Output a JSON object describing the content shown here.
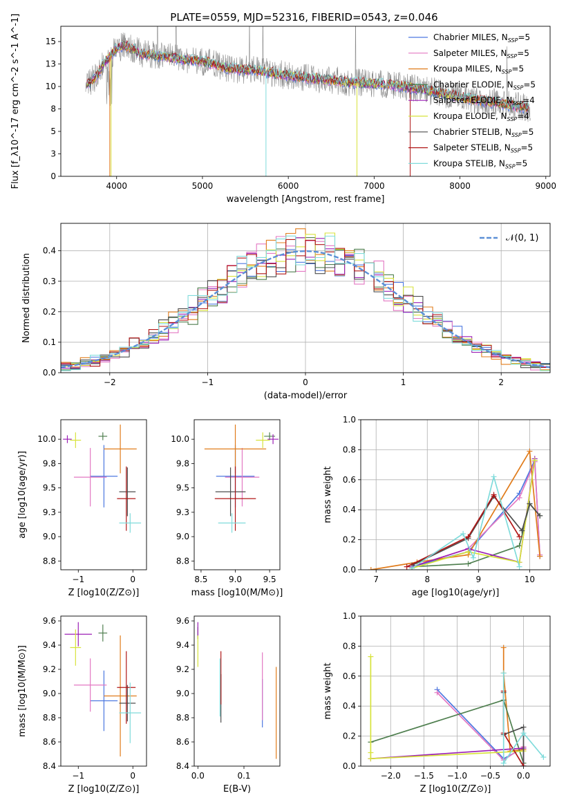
{
  "figure": {
    "title": "PLATE=0559, MJD=52316, FIBERID=0543, z=0.046"
  },
  "models": [
    {
      "name": "Chabrier MILES",
      "nssp": "5",
      "color": "#4c78e0"
    },
    {
      "name": "Salpeter MILES",
      "nssp": "5",
      "color": "#e377c2"
    },
    {
      "name": "Kroupa MILES",
      "nssp": "5",
      "color": "#e07b1a"
    },
    {
      "name": "Chabrier ELODIE",
      "nssp": "5",
      "color": "#4f7f4f"
    },
    {
      "name": "Salpeter ELODIE",
      "nssp": "4",
      "color": "#9b1fb5"
    },
    {
      "name": "Kroupa ELODIE",
      "nssp": "4",
      "color": "#d7e23a"
    },
    {
      "name": "Chabrier STELIB",
      "nssp": "5",
      "color": "#4d4d4d"
    },
    {
      "name": "Salpeter STELIB",
      "nssp": "5",
      "color": "#b01616"
    },
    {
      "name": "Kroupa STELIB",
      "nssp": "5",
      "color": "#7fdbdb"
    }
  ],
  "chart_data": [
    {
      "id": "spectrum",
      "type": "line",
      "xlabel": "wavelength [Angstrom, rest frame]",
      "ylabel": "Flux [f_λ10^-17 erg cm^-2 s^-1 A^-1]",
      "xlim": [
        3350,
        9050
      ],
      "ylim": [
        0,
        16.7
      ],
      "xticks": [
        4000,
        5000,
        6000,
        7000,
        8000,
        9000
      ],
      "yticks": [
        0.0,
        2.5,
        5.0,
        7.5,
        10.0,
        12.5,
        15.0
      ],
      "data_color": "#888888",
      "continuum": [
        [
          3650,
          10.2
        ],
        [
          3750,
          11.0
        ],
        [
          3850,
          12.5
        ],
        [
          4000,
          14.2
        ],
        [
          4100,
          14.6
        ],
        [
          4300,
          13.6
        ],
        [
          4500,
          13.4
        ],
        [
          4800,
          13.0
        ],
        [
          5000,
          12.8
        ],
        [
          5300,
          12.0
        ],
        [
          5600,
          11.8
        ],
        [
          6000,
          11.2
        ],
        [
          6400,
          10.8
        ],
        [
          6800,
          10.4
        ],
        [
          7200,
          10.2
        ],
        [
          7600,
          9.6
        ],
        [
          8000,
          8.8
        ],
        [
          8400,
          8.2
        ],
        [
          8800,
          7.6
        ]
      ],
      "legend_position": "upper right"
    },
    {
      "id": "residuals",
      "type": "line",
      "xlabel": "(data-model)/error",
      "ylabel": "Normed distribution",
      "xlim": [
        -2.5,
        2.5
      ],
      "ylim": [
        0,
        0.49
      ],
      "xticks": [
        -2,
        -1,
        0,
        1,
        2
      ],
      "yticks": [
        0.0,
        0.1,
        0.2,
        0.3,
        0.4
      ],
      "grid": true,
      "normal_label": "𝒩(0, 1)",
      "normal_color": "#5b8fd6",
      "legend_position": "upper right"
    },
    {
      "id": "age_vs_Z",
      "type": "scatter",
      "xlabel": "Z [log10(Z/Z⊙)]",
      "ylabel": "age  [log10(age/yr)]",
      "xlim": [
        -1.32,
        0.25
      ],
      "ylim": [
        8.66,
        10.2
      ],
      "xticks": [
        -1,
        0
      ],
      "yticks": [
        8.75,
        9.0,
        9.25,
        9.5,
        9.75,
        10.0
      ],
      "points": [
        {
          "model": 0,
          "x": -0.53,
          "y": 9.62,
          "ex": 0.25,
          "ey": 0.32
        },
        {
          "model": 1,
          "x": -0.78,
          "y": 9.61,
          "ex": 0.3,
          "ey": 0.3
        },
        {
          "model": 2,
          "x": -0.23,
          "y": 9.9,
          "ex": 0.3,
          "ey": 0.25
        },
        {
          "model": 3,
          "x": -0.55,
          "y": 10.03,
          "ex": 0.08,
          "ey": 0.04
        },
        {
          "model": 4,
          "x": -1.2,
          "y": 10.0,
          "ex": 0.08,
          "ey": 0.04
        },
        {
          "model": 5,
          "x": -1.05,
          "y": 9.99,
          "ex": 0.1,
          "ey": 0.08
        },
        {
          "model": 6,
          "x": -0.1,
          "y": 9.46,
          "ex": 0.15,
          "ey": 0.25
        },
        {
          "model": 7,
          "x": -0.12,
          "y": 9.39,
          "ex": 0.17,
          "ey": 0.33
        },
        {
          "model": 8,
          "x": -0.05,
          "y": 9.14,
          "ex": 0.2,
          "ey": 0.1
        }
      ]
    },
    {
      "id": "age_vs_mass",
      "type": "scatter",
      "xlabel": "mass [log10(M/M⊙)]",
      "ylabel": "",
      "xlim": [
        8.4,
        9.65
      ],
      "ylim": [
        8.66,
        10.2
      ],
      "xticks": [
        8.5,
        9.0,
        9.5
      ],
      "yticks": [
        8.75,
        9.0,
        9.25,
        9.5,
        9.75,
        10.0
      ],
      "points": [
        {
          "model": 0,
          "x": 9.0,
          "y": 9.62,
          "ex": 0.28,
          "ey": 0.32
        },
        {
          "model": 1,
          "x": 9.1,
          "y": 9.61,
          "ex": 0.25,
          "ey": 0.3
        },
        {
          "model": 2,
          "x": 9.0,
          "y": 9.9,
          "ex": 0.45,
          "ey": 0.25
        },
        {
          "model": 3,
          "x": 9.5,
          "y": 10.03,
          "ex": 0.08,
          "ey": 0.04
        },
        {
          "model": 4,
          "x": 9.55,
          "y": 10.0,
          "ex": 0.08,
          "ey": 0.05
        },
        {
          "model": 5,
          "x": 9.4,
          "y": 9.99,
          "ex": 0.1,
          "ey": 0.08
        },
        {
          "model": 6,
          "x": 8.93,
          "y": 9.46,
          "ex": 0.22,
          "ey": 0.25
        },
        {
          "model": 7,
          "x": 9.0,
          "y": 9.39,
          "ex": 0.3,
          "ey": 0.33
        },
        {
          "model": 8,
          "x": 8.95,
          "y": 9.14,
          "ex": 0.2,
          "ey": 0.1
        }
      ]
    },
    {
      "id": "mass_weight_vs_age",
      "type": "line",
      "xlabel": "age  [log10(age/yr)]",
      "ylabel": "mass weight",
      "xlim": [
        6.7,
        10.4
      ],
      "ylim": [
        0,
        1.0
      ],
      "xticks": [
        7,
        8,
        9,
        10
      ],
      "yticks": [
        0.0,
        0.2,
        0.4,
        0.6,
        0.8,
        1.0
      ],
      "grid": true,
      "series": [
        {
          "model": 0,
          "points": [
            [
              7.7,
              0.02
            ],
            [
              8.8,
              0.12
            ],
            [
              9.8,
              0.51
            ],
            [
              10.1,
              0.73
            ],
            [
              10.2,
              0.09
            ]
          ]
        },
        {
          "model": 1,
          "points": [
            [
              7.7,
              0.02
            ],
            [
              8.8,
              0.14
            ],
            [
              9.8,
              0.48
            ],
            [
              10.1,
              0.72
            ],
            [
              10.2,
              0.1
            ]
          ]
        },
        {
          "model": 2,
          "points": [
            [
              6.9,
              0.0
            ],
            [
              7.8,
              0.05
            ],
            [
              8.8,
              0.1
            ],
            [
              10.0,
              0.79
            ],
            [
              10.2,
              0.09
            ]
          ]
        },
        {
          "model": 3,
          "points": [
            [
              7.7,
              0.02
            ],
            [
              8.8,
              0.04
            ],
            [
              9.8,
              0.16
            ],
            [
              10.0,
              0.44
            ],
            [
              10.2,
              0.36
            ]
          ]
        },
        {
          "model": 4,
          "points": [
            [
              7.7,
              0.02
            ],
            [
              8.8,
              0.14
            ],
            [
              9.8,
              0.05
            ],
            [
              10.1,
              0.74
            ]
          ]
        },
        {
          "model": 5,
          "points": [
            [
              7.7,
              0.01
            ],
            [
              8.8,
              0.12
            ],
            [
              9.8,
              0.05
            ],
            [
              10.1,
              0.73
            ]
          ]
        },
        {
          "model": 6,
          "points": [
            [
              7.7,
              0.03
            ],
            [
              8.8,
              0.21
            ],
            [
              9.3,
              0.49
            ],
            [
              9.85,
              0.26
            ],
            [
              10.0,
              0.44
            ],
            [
              10.2,
              0.36
            ]
          ]
        },
        {
          "model": 7,
          "points": [
            [
              7.6,
              0.02
            ],
            [
              8.8,
              0.22
            ],
            [
              9.3,
              0.5
            ],
            [
              9.8,
              0.22
            ]
          ]
        },
        {
          "model": 8,
          "points": [
            [
              7.7,
              0.01
            ],
            [
              8.7,
              0.24
            ],
            [
              8.9,
              0.08
            ],
            [
              9.3,
              0.62
            ],
            [
              9.8,
              0.02
            ]
          ]
        }
      ]
    },
    {
      "id": "mass_vs_Z",
      "type": "scatter",
      "xlabel": "Z [log10(Z/Z⊙)]",
      "ylabel": "mass [log10(M/M⊙)]",
      "xlim": [
        -1.32,
        0.25
      ],
      "ylim": [
        8.4,
        9.64
      ],
      "xticks": [
        -1,
        0
      ],
      "yticks": [
        8.4,
        8.6,
        8.8,
        9.0,
        9.2,
        9.4,
        9.6
      ],
      "points": [
        {
          "model": 0,
          "x": -0.53,
          "y": 8.94,
          "ex": 0.25,
          "ey": 0.25
        },
        {
          "model": 1,
          "x": -0.78,
          "y": 9.07,
          "ex": 0.3,
          "ey": 0.22
        },
        {
          "model": 2,
          "x": -0.23,
          "y": 8.98,
          "ex": 0.3,
          "ey": 0.5
        },
        {
          "model": 3,
          "x": -0.55,
          "y": 9.5,
          "ex": 0.08,
          "ey": 0.07
        },
        {
          "model": 4,
          "x": -1.0,
          "y": 9.49,
          "ex": 0.25,
          "ey": 0.1
        },
        {
          "model": 5,
          "x": -1.05,
          "y": 9.38,
          "ex": 0.1,
          "ey": 0.15
        },
        {
          "model": 6,
          "x": -0.1,
          "y": 8.92,
          "ex": 0.15,
          "ey": 0.15
        },
        {
          "model": 7,
          "x": -0.12,
          "y": 9.05,
          "ex": 0.17,
          "ey": 0.3
        },
        {
          "model": 8,
          "x": -0.05,
          "y": 8.84,
          "ex": 0.2,
          "ey": 0.25
        }
      ]
    },
    {
      "id": "mass_vs_ebv",
      "type": "scatter",
      "xlabel": "E(B-V)",
      "ylabel": "",
      "xlim": [
        -0.008,
        0.178
      ],
      "ylim": [
        8.4,
        9.64
      ],
      "xticks": [
        0.0,
        0.1
      ],
      "yticks": [
        8.4,
        8.6,
        8.8,
        9.0,
        9.2,
        9.4,
        9.6
      ],
      "points": [
        {
          "model": 0,
          "x": 0.14,
          "y": 8.92,
          "ex": 0.0,
          "ey": 0.2
        },
        {
          "model": 1,
          "x": 0.14,
          "y": 9.06,
          "ex": 0.0,
          "ey": 0.28
        },
        {
          "model": 2,
          "x": 0.17,
          "y": 8.84,
          "ex": 0.0,
          "ey": 0.38
        },
        {
          "model": 3,
          "x": 0.0,
          "y": 9.5,
          "ex": 0.0,
          "ey": 0.05
        },
        {
          "model": 4,
          "x": 0.0,
          "y": 9.53,
          "ex": 0.0,
          "ey": 0.06
        },
        {
          "model": 5,
          "x": 0.0,
          "y": 9.35,
          "ex": 0.0,
          "ey": 0.13
        },
        {
          "model": 6,
          "x": 0.05,
          "y": 8.96,
          "ex": 0.0,
          "ey": 0.2
        },
        {
          "model": 7,
          "x": 0.05,
          "y": 9.13,
          "ex": 0.0,
          "ey": 0.22
        },
        {
          "model": 8,
          "x": 0.048,
          "y": 9.05,
          "ex": 0.0,
          "ey": 0.24
        }
      ]
    },
    {
      "id": "mass_weight_vs_Z",
      "type": "line",
      "xlabel": "Z [log10(Z/Z⊙)]",
      "ylabel": "mass weight",
      "xlim": [
        -2.45,
        0.4
      ],
      "ylim": [
        0,
        1.0
      ],
      "xticks": [
        -2.0,
        -1.5,
        -1.0,
        -0.5,
        0.0
      ],
      "yticks": [
        0.0,
        0.2,
        0.4,
        0.6,
        0.8,
        1.0
      ],
      "grid": true,
      "series": [
        {
          "model": 0,
          "points": [
            [
              -1.3,
              0.51
            ],
            [
              -0.3,
              0.05
            ],
            [
              0.0,
              0.12
            ]
          ]
        },
        {
          "model": 1,
          "points": [
            [
              -1.3,
              0.49
            ],
            [
              -0.3,
              0.04
            ],
            [
              0.0,
              0.13
            ]
          ]
        },
        {
          "model": 2,
          "points": [
            [
              -0.3,
              0.79
            ],
            [
              -0.3,
              0.62
            ],
            [
              -0.2,
              0.1
            ],
            [
              0.0,
              0.11
            ]
          ]
        },
        {
          "model": 3,
          "points": [
            [
              -2.3,
              0.16
            ],
            [
              -0.3,
              0.44
            ],
            [
              0.0,
              0.02
            ]
          ]
        },
        {
          "model": 4,
          "points": [
            [
              -2.3,
              0.05
            ],
            [
              0.0,
              0.12
            ],
            [
              0.0,
              0.0
            ]
          ]
        },
        {
          "model": 5,
          "points": [
            [
              -2.3,
              0.73
            ],
            [
              -2.3,
              0.09
            ],
            [
              -2.3,
              0.05
            ],
            [
              0.0,
              0.1
            ]
          ]
        },
        {
          "model": 6,
          "points": [
            [
              -0.3,
              0.49
            ],
            [
              -0.3,
              0.21
            ],
            [
              0.0,
              0.26
            ],
            [
              0.0,
              0.0
            ]
          ]
        },
        {
          "model": 7,
          "points": [
            [
              -0.3,
              0.5
            ],
            [
              -0.3,
              0.22
            ],
            [
              0.0,
              0.0
            ]
          ]
        },
        {
          "model": 8,
          "points": [
            [
              -0.3,
              0.62
            ],
            [
              -0.3,
              0.02
            ],
            [
              0.0,
              0.22
            ],
            [
              0.3,
              0.06
            ]
          ]
        }
      ]
    }
  ]
}
